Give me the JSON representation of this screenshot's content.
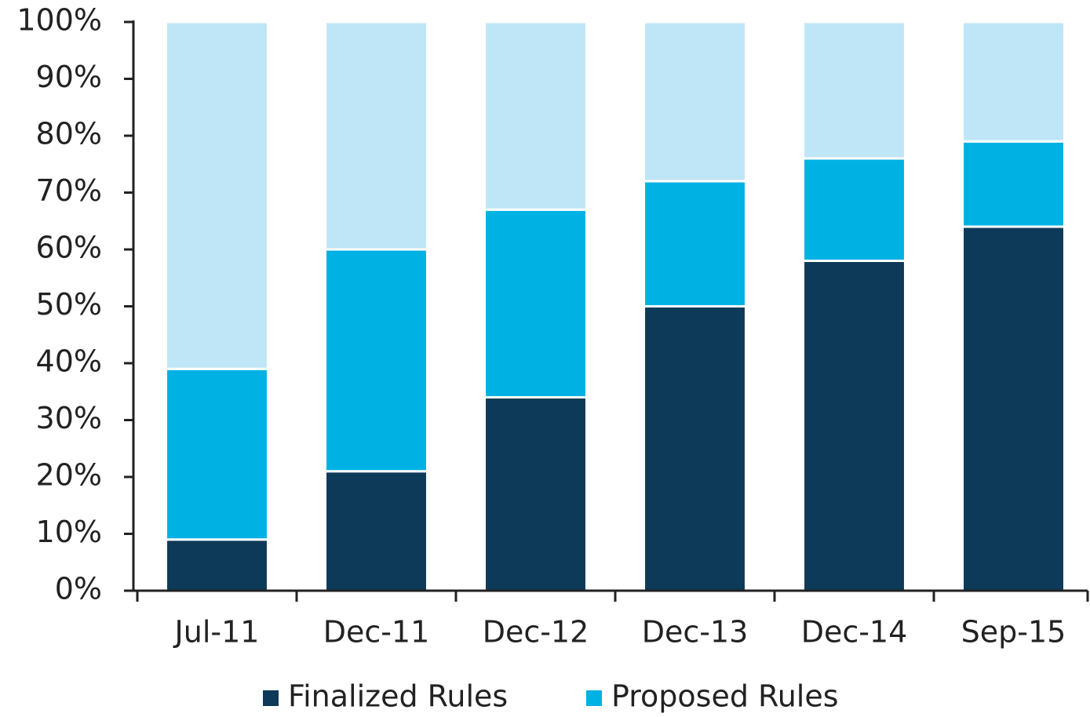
{
  "chart_data": {
    "type": "stacked_bar",
    "categories": [
      "Jul-11",
      "Dec-11",
      "Dec-12",
      "Dec-13",
      "Dec-14",
      "Sep-15"
    ],
    "series": [
      {
        "name": "Finalized Rules",
        "color": "#0d3a58",
        "values": [
          9,
          21,
          34,
          50,
          58,
          64
        ]
      },
      {
        "name": "Proposed Rules",
        "color": "#00b2e3",
        "values": [
          30,
          39,
          33,
          22,
          18,
          15
        ]
      },
      {
        "color": "#bfe6f6",
        "values": [
          61,
          40,
          33,
          28,
          24,
          21
        ]
      }
    ],
    "ylim": [
      0,
      100
    ],
    "yticks": [
      {
        "value": 0,
        "label": "0%"
      },
      {
        "value": 10,
        "label": "10%"
      },
      {
        "value": 20,
        "label": "20%"
      },
      {
        "value": 30,
        "label": "30%"
      },
      {
        "value": 40,
        "label": "40%"
      },
      {
        "value": 50,
        "label": "50%"
      },
      {
        "value": 60,
        "label": "60%"
      },
      {
        "value": 70,
        "label": "70%"
      },
      {
        "value": 80,
        "label": "80%"
      },
      {
        "value": 90,
        "label": "90%"
      },
      {
        "value": 100,
        "label": "100%"
      }
    ],
    "grid": false
  }
}
